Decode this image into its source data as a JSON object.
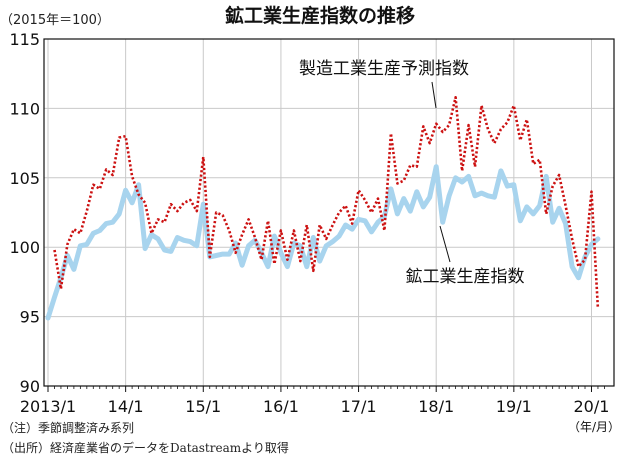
{
  "chart_data": {
    "type": "line",
    "title": "鉱工業生産指数の推移",
    "unit_label": "（2015年＝100）",
    "ylim": [
      90,
      115
    ],
    "yticks": [
      90,
      95,
      100,
      105,
      110,
      115
    ],
    "xlim": [
      0,
      85
    ],
    "x_tick_labels": [
      {
        "x": 0,
        "label": "2013/1"
      },
      {
        "x": 12,
        "label": "14/1"
      },
      {
        "x": 24,
        "label": "15/1"
      },
      {
        "x": 36,
        "label": "16/1"
      },
      {
        "x": 48,
        "label": "17/1"
      },
      {
        "x": 60,
        "label": "18/1"
      },
      {
        "x": 72,
        "label": "19/1"
      },
      {
        "x": 84,
        "label": "20/1"
      }
    ],
    "x_unit_label": "（年/月）",
    "grid": true,
    "series": [
      {
        "name": "鉱工業生産指数",
        "color": "#a8d4ee",
        "style": "solid",
        "x_start": 0,
        "values": [
          94.9,
          96.4,
          97.8,
          99.4,
          98.4,
          100.1,
          100.2,
          101.0,
          101.2,
          101.7,
          101.8,
          102.4,
          104.1,
          103.2,
          104.5,
          99.9,
          100.9,
          100.6,
          99.8,
          99.7,
          100.7,
          100.5,
          100.4,
          100.1,
          103.1,
          99.3,
          99.4,
          99.5,
          99.5,
          100.3,
          98.7,
          100.1,
          100.5,
          99.6,
          98.6,
          100.8,
          99.6,
          98.6,
          100.3,
          100.1,
          98.6,
          100.7,
          99.0,
          100.1,
          100.4,
          100.8,
          101.6,
          101.3,
          102.0,
          101.9,
          101.1,
          101.8,
          102.2,
          104.2,
          102.4,
          103.5,
          102.6,
          104.0,
          102.9,
          103.6,
          105.8,
          101.8,
          103.7,
          105.0,
          104.7,
          105.1,
          103.7,
          103.9,
          103.7,
          103.6,
          105.5,
          104.4,
          104.5,
          101.9,
          102.9,
          102.4,
          103.0,
          105.1,
          101.8,
          102.8,
          101.7,
          98.6,
          97.8,
          99.3,
          100.2,
          100.6
        ],
        "x_end": 86
      },
      {
        "name": "製造工業生産予測指数",
        "color": "#cc1111",
        "style": "dotted",
        "x_start": 0,
        "values": [
          null,
          99.8,
          97.0,
          100.2,
          101.3,
          101.0,
          102.6,
          104.5,
          104.2,
          105.6,
          105.2,
          107.9,
          108.0,
          105.1,
          103.8,
          103.2,
          101.0,
          102.0,
          101.8,
          103.1,
          102.6,
          103.2,
          103.4,
          102.6,
          106.5,
          99.3,
          102.5,
          102.3,
          101.2,
          99.6,
          100.9,
          102.0,
          100.7,
          99.1,
          101.9,
          98.8,
          101.2,
          99.1,
          101.2,
          99.0,
          101.6,
          98.3,
          101.6,
          100.6,
          101.6,
          102.5,
          103.0,
          101.7,
          104.1,
          103.4,
          102.5,
          103.5,
          101.2,
          108.2,
          104.6,
          104.8,
          105.9,
          105.8,
          108.7,
          107.5,
          108.9,
          108.3,
          108.8,
          110.8,
          105.5,
          108.8,
          105.8,
          110.2,
          108.5,
          107.5,
          108.5,
          109.0,
          110.2,
          107.7,
          109.2,
          106.0,
          106.3,
          102.4,
          104.4,
          105.2,
          103.0,
          100.6,
          98.6,
          99.1,
          104.0,
          95.6
        ]
      }
    ],
    "annotations": [
      {
        "text": "製造工業生産予測指数",
        "series": 1
      },
      {
        "text": "鉱工業生産指数",
        "series": 0
      }
    ]
  },
  "notes": [
    "（注）季節調整済み系列",
    "（出所）経済産業省のデータをDatastreamより取得"
  ]
}
